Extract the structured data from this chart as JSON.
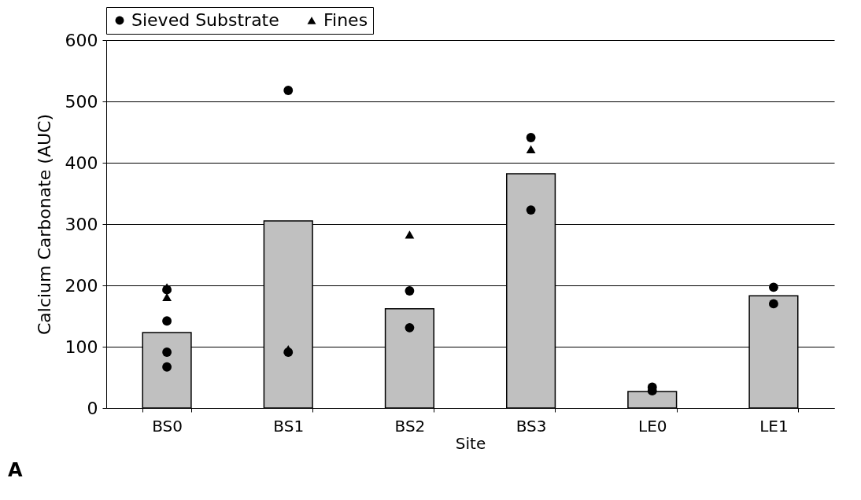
{
  "chart_data": {
    "type": "bar",
    "xlabel": "Site",
    "ylabel": "Calcium Carbonate (AUC)",
    "categories": [
      "BS0",
      "BS1",
      "BS2",
      "BS3",
      "LE0",
      "LE1"
    ],
    "series": [
      {
        "color": "#c0c0c0",
        "values": [
          123,
          305,
          162,
          382,
          27,
          183
        ]
      },
      {
        "type": "scatter",
        "name": "Sieved Substrate",
        "color": "#000000",
        "marker": "circle",
        "x": [
          "BS0",
          "BS0",
          "BS0",
          "BS0",
          "BS1",
          "BS1",
          "BS2",
          "BS2",
          "BS3",
          "BS3",
          "LE0",
          "LE0",
          "LE1",
          "LE1"
        ],
        "values": [
          193,
          142,
          91,
          67,
          518,
          91,
          191,
          131,
          441,
          323,
          34,
          28,
          197,
          170
        ]
      },
      {
        "type": "scatter",
        "name": "Fines",
        "color": "#000000",
        "marker": "triangle",
        "x": [
          "BS0",
          "BS0",
          "BS1",
          "BS2",
          "BS3"
        ],
        "values": [
          197,
          181,
          96,
          283,
          422
        ]
      }
    ],
    "ylim": [
      0,
      600
    ],
    "yticks": [
      0,
      100,
      200,
      300,
      400,
      500,
      600
    ],
    "grid": "y",
    "legend": "top",
    "annotations": [
      "A"
    ]
  }
}
